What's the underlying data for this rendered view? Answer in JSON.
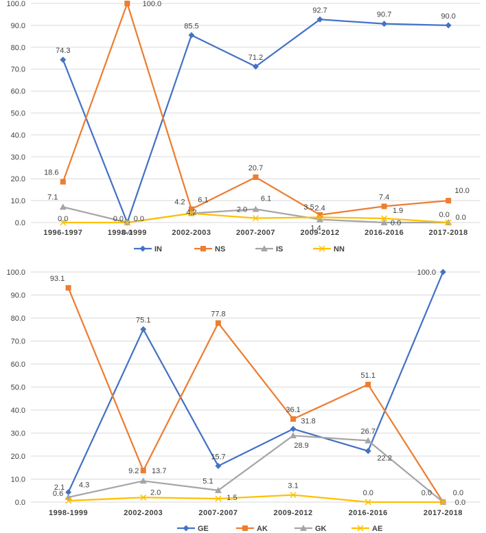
{
  "chart_data": [
    {
      "type": "line",
      "categories": [
        "1996-1997",
        "1998-1999",
        "2002-2003",
        "2007-2007",
        "2009-2012",
        "2016-2016",
        "2017-2018"
      ],
      "ylim": [
        0,
        100
      ],
      "yticks": [
        "0.0",
        "10.0",
        "20.0",
        "30.0",
        "40.0",
        "50.0",
        "60.0",
        "70.0",
        "80.0",
        "90.0",
        "100.0"
      ],
      "legend_position": "bottom",
      "series": [
        {
          "name": "IN",
          "color": "#4472C4",
          "marker": "diamond",
          "values": [
            74.3,
            0.0,
            85.5,
            71.2,
            92.7,
            90.7,
            90.0
          ],
          "labels": [
            "74.3",
            "0.0",
            "85.5",
            "71.2",
            "92.7",
            "90.7",
            "90.0"
          ]
        },
        {
          "name": "NS",
          "color": "#ED7D31",
          "marker": "square",
          "values": [
            18.6,
            100.0,
            6.1,
            20.7,
            3.5,
            7.4,
            10.0
          ],
          "labels": [
            "18.6",
            "100.0",
            "6.1",
            "20.7",
            "3.5",
            "7.4",
            "10.0"
          ]
        },
        {
          "name": "IS",
          "color": "#A5A5A5",
          "marker": "triangle",
          "values": [
            7.1,
            0.0,
            4.2,
            6.1,
            1.4,
            0.0,
            0.0
          ],
          "labels": [
            "7.1",
            "0.0",
            "4.2",
            "6.1",
            "1.4",
            "0.0",
            "0.0"
          ]
        },
        {
          "name": "NN",
          "color": "#FFC000",
          "marker": "x",
          "values": [
            0.0,
            0.0,
            4.2,
            2.0,
            2.4,
            1.9,
            0.0
          ],
          "labels": [
            "0.0",
            "0.0",
            "4.2",
            "2.0",
            "2.4",
            "1.9",
            "0.0"
          ]
        }
      ]
    },
    {
      "type": "line",
      "categories": [
        "1998-1999",
        "2002-2003",
        "2007-2007",
        "2009-2012",
        "2016-2016",
        "2017-2018"
      ],
      "ylim": [
        0,
        100
      ],
      "yticks": [
        "0.0",
        "10.0",
        "20.0",
        "30.0",
        "40.0",
        "50.0",
        "60.0",
        "70.0",
        "80.0",
        "90.0",
        "100.0"
      ],
      "legend_position": "bottom",
      "series": [
        {
          "name": "GE",
          "color": "#4472C4",
          "marker": "diamond",
          "values": [
            4.3,
            75.1,
            15.7,
            31.8,
            22.2,
            100.0
          ],
          "labels": [
            "4.3",
            "75.1",
            "15.7",
            "31.8",
            "22.2",
            "100.0"
          ]
        },
        {
          "name": "AK",
          "color": "#ED7D31",
          "marker": "square",
          "values": [
            93.1,
            13.7,
            77.8,
            36.1,
            51.1,
            0.0
          ],
          "labels": [
            "93.1",
            "13.7",
            "77.8",
            "36.1",
            "51.1",
            "0.0"
          ]
        },
        {
          "name": "GK",
          "color": "#A5A5A5",
          "marker": "triangle",
          "values": [
            2.1,
            9.2,
            5.1,
            28.9,
            26.7,
            0.0
          ],
          "labels": [
            "2.1",
            "9.2",
            "5.1",
            "28.9",
            "26.7",
            "0.0"
          ]
        },
        {
          "name": "AE",
          "color": "#FFC000",
          "marker": "x",
          "values": [
            0.6,
            2.0,
            1.5,
            3.1,
            0.0,
            0.0
          ],
          "labels": [
            "0.6",
            "2.0",
            "1.5",
            "3.1",
            "0.0",
            "0.0"
          ]
        }
      ]
    }
  ]
}
